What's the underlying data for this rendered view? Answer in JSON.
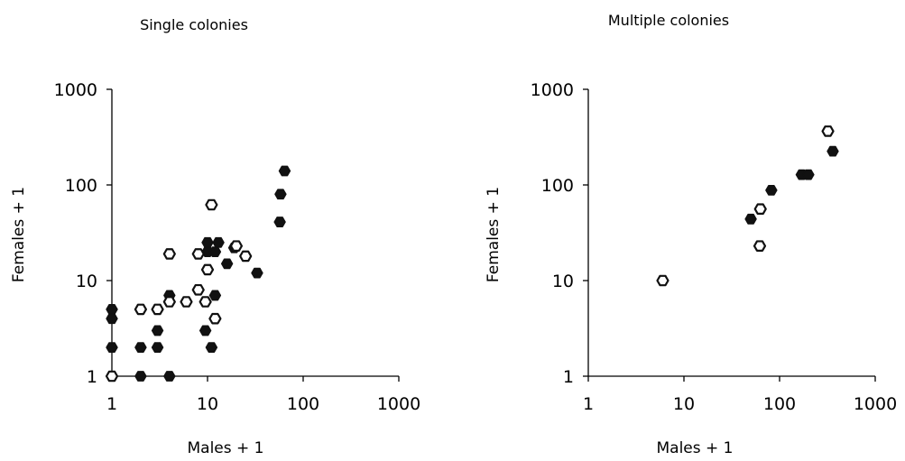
{
  "chart_data": [
    {
      "type": "scatter",
      "title": "Single colonies",
      "xlabel": "Males + 1",
      "ylabel": "Females + 1",
      "xscale": "log",
      "yscale": "log",
      "xlim": [
        1,
        1000
      ],
      "ylim": [
        1,
        1000
      ],
      "xticks": [
        "1",
        "10",
        "100",
        "1000"
      ],
      "yticks": [
        "1",
        "10",
        "100",
        "1000"
      ],
      "grid": false,
      "legend": "none",
      "series": [
        {
          "marker": "filled-hexagon",
          "color": "#111111",
          "points": [
            [
              1,
              5
            ],
            [
              1,
              4
            ],
            [
              1,
              2
            ],
            [
              2,
              2
            ],
            [
              2,
              1
            ],
            [
              3,
              3
            ],
            [
              3,
              2
            ],
            [
              4,
              7
            ],
            [
              4,
              1
            ],
            [
              9.5,
              3
            ],
            [
              10,
              25
            ],
            [
              10,
              20
            ],
            [
              11,
              2
            ],
            [
              12,
              20
            ],
            [
              12,
              7
            ],
            [
              13,
              25
            ],
            [
              16,
              15
            ],
            [
              19,
              22
            ],
            [
              33,
              12
            ],
            [
              58,
              80
            ],
            [
              57,
              41
            ],
            [
              64,
              140
            ]
          ]
        },
        {
          "marker": "open-hexagon",
          "color": "#111111",
          "points": [
            [
              1,
              1
            ],
            [
              2,
              5
            ],
            [
              3,
              5
            ],
            [
              4,
              19
            ],
            [
              4,
              6
            ],
            [
              6,
              6
            ],
            [
              8,
              19
            ],
            [
              8,
              8
            ],
            [
              9.5,
              6
            ],
            [
              10,
              13
            ],
            [
              11,
              62
            ],
            [
              12,
              4
            ],
            [
              20,
              23
            ],
            [
              25,
              18
            ]
          ]
        }
      ]
    },
    {
      "type": "scatter",
      "title": "Multiple colonies",
      "xlabel": "Males + 1",
      "ylabel": "Females + 1",
      "xscale": "log",
      "yscale": "log",
      "xlim": [
        1,
        1000
      ],
      "ylim": [
        1,
        1000
      ],
      "xticks": [
        "1",
        "10",
        "100",
        "1000"
      ],
      "yticks": [
        "1",
        "10",
        "100",
        "1000"
      ],
      "grid": false,
      "legend": "none",
      "series": [
        {
          "marker": "filled-hexagon",
          "color": "#111111",
          "points": [
            [
              50,
              44
            ],
            [
              82,
              88
            ],
            [
              170,
              128
            ],
            [
              200,
              128
            ],
            [
              360,
              225
            ]
          ]
        },
        {
          "marker": "open-hexagon",
          "color": "#111111",
          "points": [
            [
              6,
              10
            ],
            [
              63,
              56
            ],
            [
              62,
              23
            ],
            [
              320,
              365
            ]
          ]
        }
      ]
    }
  ]
}
